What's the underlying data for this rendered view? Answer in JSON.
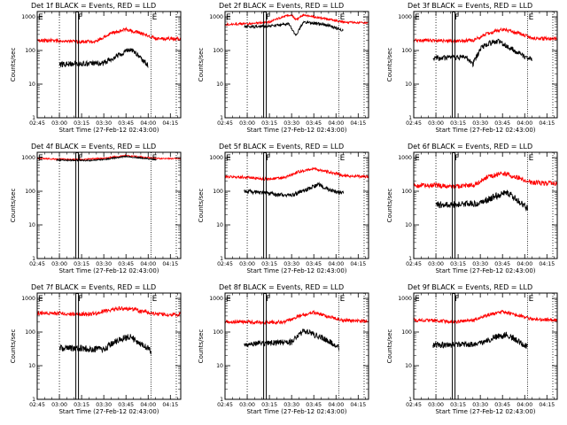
{
  "colors": {
    "events": "#000000",
    "lld": "#ff0000",
    "axis": "#000000",
    "background": "#ffffff"
  },
  "chart_data": [
    {
      "type": "line",
      "title": "Det 1f BLACK = Events, RED = LLD",
      "xlabel": "Start Time (27-Feb-12 02:43:00)",
      "ylabel": "Counts/sec",
      "y_scale": "log",
      "ylim": [
        1,
        1000
      ],
      "yticks": [
        "1",
        "10",
        "100",
        "1000"
      ],
      "xlim": [
        "02:45",
        "04:22"
      ],
      "xticks": [
        "02:45",
        "03:00",
        "03:15",
        "03:30",
        "03:45",
        "04:00",
        "04:15"
      ],
      "markers": [
        {
          "label": "E",
          "time": "02:45",
          "style": "solid"
        },
        {
          "label": "",
          "time": "03:00",
          "style": "dotted"
        },
        {
          "label": "F",
          "time": "03:12",
          "style": "double"
        },
        {
          "label": "E",
          "time": "04:02",
          "style": "solid"
        },
        {
          "label": "",
          "time": "04:19",
          "style": "dotted"
        }
      ],
      "series": [
        {
          "color": "#ff0000",
          "x": [
            "02:45",
            "03:00",
            "03:12",
            "03:25",
            "03:35",
            "03:45",
            "03:55",
            "04:05",
            "04:22"
          ],
          "values": [
            200,
            195,
            180,
            190,
            330,
            420,
            330,
            230,
            220
          ],
          "noise": 0.05
        },
        {
          "color": "#000000",
          "x": [
            "03:00",
            "03:10",
            "03:20",
            "03:30",
            "03:40",
            "03:48",
            "03:55",
            "04:00"
          ],
          "values": [
            38,
            40,
            40,
            42,
            75,
            110,
            60,
            36
          ],
          "noise": 0.08
        }
      ]
    },
    {
      "type": "line",
      "title": "Det 2f BLACK = Events, RED = LLD",
      "xlabel": "Start Time (27-Feb-12 02:43:00)",
      "ylabel": "Counts/sec",
      "y_scale": "log",
      "ylim": [
        1,
        1000
      ],
      "yticks": [
        "1",
        "10",
        "100",
        "1000"
      ],
      "xlim": [
        "02:45",
        "04:22"
      ],
      "xticks": [
        "02:45",
        "03:00",
        "03:15",
        "03:30",
        "03:45",
        "04:00",
        "04:15"
      ],
      "markers": [
        {
          "label": "E",
          "time": "02:45",
          "style": "solid"
        },
        {
          "label": "",
          "time": "03:00",
          "style": "dotted"
        },
        {
          "label": "F",
          "time": "03:12",
          "style": "double"
        },
        {
          "label": "E",
          "time": "04:02",
          "style": "solid"
        },
        {
          "label": "",
          "time": "04:19",
          "style": "dotted"
        }
      ],
      "series": [
        {
          "color": "#ff0000",
          "x": [
            "02:45",
            "03:00",
            "03:15",
            "03:25",
            "03:30",
            "03:33",
            "03:38",
            "03:45",
            "03:55",
            "04:05",
            "04:22"
          ],
          "values": [
            600,
            620,
            700,
            1050,
            1150,
            800,
            1150,
            1000,
            850,
            700,
            650
          ],
          "noise": 0.03
        },
        {
          "color": "#000000",
          "x": [
            "02:58",
            "03:10",
            "03:20",
            "03:28",
            "03:33",
            "03:38",
            "03:45",
            "03:55",
            "04:00",
            "04:05"
          ],
          "values": [
            500,
            520,
            560,
            620,
            280,
            700,
            650,
            560,
            460,
            400
          ],
          "noise": 0.04
        }
      ]
    },
    {
      "type": "line",
      "title": "Det 3f BLACK = Events, RED = LLD",
      "xlabel": "Start Time (27-Feb-12 02:43:00)",
      "ylabel": "Counts/sec",
      "y_scale": "log",
      "ylim": [
        1,
        1000
      ],
      "yticks": [
        "1",
        "10",
        "100",
        "1000"
      ],
      "xlim": [
        "02:45",
        "04:22"
      ],
      "xticks": [
        "02:45",
        "03:00",
        "03:15",
        "03:30",
        "03:45",
        "04:00",
        "04:15"
      ],
      "markers": [
        {
          "label": "E",
          "time": "02:45",
          "style": "solid"
        },
        {
          "label": "",
          "time": "03:00",
          "style": "dotted"
        },
        {
          "label": "F",
          "time": "03:12",
          "style": "double"
        },
        {
          "label": "E",
          "time": "04:02",
          "style": "solid"
        },
        {
          "label": "",
          "time": "04:19",
          "style": "dotted"
        }
      ],
      "series": [
        {
          "color": "#ff0000",
          "x": [
            "02:45",
            "03:00",
            "03:12",
            "03:25",
            "03:35",
            "03:45",
            "03:55",
            "04:05",
            "04:22"
          ],
          "values": [
            200,
            200,
            190,
            200,
            320,
            420,
            340,
            230,
            220
          ],
          "noise": 0.05
        },
        {
          "color": "#000000",
          "x": [
            "02:58",
            "03:10",
            "03:20",
            "03:25",
            "03:30",
            "03:35",
            "03:42",
            "03:50",
            "04:00",
            "04:05"
          ],
          "values": [
            60,
            60,
            65,
            40,
            110,
            160,
            190,
            120,
            65,
            55
          ],
          "noise": 0.08
        }
      ]
    },
    {
      "type": "line",
      "title": "Det 4f BLACK = Events, RED = LLD",
      "xlabel": "Start Time (27-Feb-12 02:43:00)",
      "ylabel": "Counts/sec",
      "y_scale": "log",
      "ylim": [
        1,
        1000
      ],
      "yticks": [
        "1",
        "10",
        "100",
        "1000"
      ],
      "xlim": [
        "02:45",
        "04:22"
      ],
      "xticks": [
        "02:45",
        "03:00",
        "03:15",
        "03:30",
        "03:45",
        "04:00",
        "04:15"
      ],
      "markers": [
        {
          "label": "E",
          "time": "02:45",
          "style": "solid"
        },
        {
          "label": "",
          "time": "03:00",
          "style": "dotted"
        },
        {
          "label": "F",
          "time": "03:12",
          "style": "double"
        },
        {
          "label": "E",
          "time": "04:02",
          "style": "solid"
        },
        {
          "label": "",
          "time": "04:19",
          "style": "dotted"
        }
      ],
      "series": [
        {
          "color": "#ff0000",
          "x": [
            "02:45",
            "03:00",
            "03:15",
            "03:30",
            "03:45",
            "03:55",
            "04:05",
            "04:22"
          ],
          "values": [
            950,
            900,
            880,
            950,
            1150,
            1050,
            950,
            920
          ],
          "noise": 0.02
        },
        {
          "color": "#000000",
          "x": [
            "02:58",
            "03:10",
            "03:20",
            "03:30",
            "03:45",
            "03:55",
            "04:05"
          ],
          "values": [
            850,
            830,
            820,
            880,
            1080,
            980,
            880
          ],
          "noise": 0.02
        }
      ]
    },
    {
      "type": "line",
      "title": "Det 5f BLACK = Events, RED = LLD",
      "xlabel": "Start Time (27-Feb-12 02:43:00)",
      "ylabel": "Counts/sec",
      "y_scale": "log",
      "ylim": [
        1,
        1000
      ],
      "yticks": [
        "1",
        "10",
        "100",
        "1000"
      ],
      "xlim": [
        "02:45",
        "04:22"
      ],
      "xticks": [
        "02:45",
        "03:00",
        "03:15",
        "03:30",
        "03:45",
        "04:00",
        "04:15"
      ],
      "markers": [
        {
          "label": "E",
          "time": "02:45",
          "style": "solid"
        },
        {
          "label": "",
          "time": "03:00",
          "style": "dotted"
        },
        {
          "label": "F",
          "time": "03:12",
          "style": "double"
        },
        {
          "label": "E",
          "time": "04:02",
          "style": "solid"
        },
        {
          "label": "",
          "time": "04:19",
          "style": "dotted"
        }
      ],
      "series": [
        {
          "color": "#ff0000",
          "x": [
            "02:45",
            "03:00",
            "03:12",
            "03:25",
            "03:35",
            "03:45",
            "03:55",
            "04:05",
            "04:22"
          ],
          "values": [
            270,
            260,
            230,
            250,
            380,
            470,
            380,
            290,
            270
          ],
          "noise": 0.04
        },
        {
          "color": "#000000",
          "x": [
            "02:58",
            "03:10",
            "03:20",
            "03:30",
            "03:40",
            "03:48",
            "03:55",
            "04:05"
          ],
          "values": [
            100,
            90,
            80,
            75,
            110,
            160,
            110,
            85
          ],
          "noise": 0.06
        }
      ]
    },
    {
      "type": "line",
      "title": "Det 6f BLACK = Events, RED = LLD",
      "xlabel": "Start Time (27-Feb-12 02:43:00)",
      "ylabel": "Counts/sec",
      "y_scale": "log",
      "ylim": [
        1,
        1000
      ],
      "yticks": [
        "1",
        "10",
        "100",
        "1000"
      ],
      "xlim": [
        "02:45",
        "04:22"
      ],
      "xticks": [
        "02:45",
        "03:00",
        "03:15",
        "03:30",
        "03:45",
        "04:00",
        "04:15"
      ],
      "markers": [
        {
          "label": "E",
          "time": "02:45",
          "style": "solid"
        },
        {
          "label": "",
          "time": "03:00",
          "style": "dotted"
        },
        {
          "label": "F",
          "time": "03:12",
          "style": "double"
        },
        {
          "label": "E",
          "time": "04:02",
          "style": "solid"
        },
        {
          "label": "",
          "time": "04:19",
          "style": "dotted"
        }
      ],
      "series": [
        {
          "color": "#ff0000",
          "x": [
            "02:45",
            "03:00",
            "03:12",
            "03:25",
            "03:35",
            "03:45",
            "03:55",
            "04:05",
            "04:22"
          ],
          "values": [
            150,
            150,
            140,
            150,
            270,
            340,
            260,
            180,
            170
          ],
          "noise": 0.07
        },
        {
          "color": "#000000",
          "x": [
            "03:00",
            "03:10",
            "03:20",
            "03:30",
            "03:40",
            "03:48",
            "03:55",
            "04:02"
          ],
          "values": [
            40,
            40,
            42,
            45,
            70,
            95,
            55,
            30
          ],
          "noise": 0.1
        }
      ]
    },
    {
      "type": "line",
      "title": "Det 7f BLACK = Events, RED = LLD",
      "xlabel": "Start Time (27-Feb-12 02:43:00)",
      "ylabel": "Counts/sec",
      "y_scale": "log",
      "ylim": [
        1,
        1000
      ],
      "yticks": [
        "1",
        "10",
        "100",
        "1000"
      ],
      "xlim": [
        "02:45",
        "04:22"
      ],
      "xticks": [
        "02:45",
        "03:00",
        "03:15",
        "03:30",
        "03:45",
        "04:00",
        "04:15"
      ],
      "markers": [
        {
          "label": "E",
          "time": "02:45",
          "style": "solid"
        },
        {
          "label": "",
          "time": "03:00",
          "style": "dotted"
        },
        {
          "label": "F",
          "time": "03:12",
          "style": "double"
        },
        {
          "label": "E",
          "time": "04:02",
          "style": "solid"
        },
        {
          "label": "",
          "time": "04:19",
          "style": "dotted"
        }
      ],
      "series": [
        {
          "color": "#ff0000",
          "x": [
            "02:45",
            "03:00",
            "03:12",
            "03:25",
            "03:35",
            "03:45",
            "03:55",
            "04:05",
            "04:22"
          ],
          "values": [
            370,
            360,
            330,
            360,
            470,
            520,
            420,
            340,
            330
          ],
          "noise": 0.06
        },
        {
          "color": "#000000",
          "x": [
            "03:00",
            "03:10",
            "03:20",
            "03:30",
            "03:40",
            "03:48",
            "03:55",
            "04:02"
          ],
          "values": [
            35,
            33,
            32,
            30,
            60,
            75,
            45,
            28
          ],
          "noise": 0.1
        }
      ]
    },
    {
      "type": "line",
      "title": "Det 8f BLACK = Events, RED = LLD",
      "xlabel": "Start Time (27-Feb-12 02:43:00)",
      "ylabel": "Counts/sec",
      "y_scale": "log",
      "ylim": [
        1,
        1000
      ],
      "yticks": [
        "1",
        "10",
        "100",
        "1000"
      ],
      "xlim": [
        "02:45",
        "04:22"
      ],
      "xticks": [
        "02:45",
        "03:00",
        "03:15",
        "03:30",
        "03:45",
        "04:00",
        "04:15"
      ],
      "markers": [
        {
          "label": "E",
          "time": "02:45",
          "style": "solid"
        },
        {
          "label": "",
          "time": "03:00",
          "style": "dotted"
        },
        {
          "label": "F",
          "time": "03:12",
          "style": "double"
        },
        {
          "label": "E",
          "time": "04:02",
          "style": "solid"
        },
        {
          "label": "",
          "time": "04:19",
          "style": "dotted"
        }
      ],
      "series": [
        {
          "color": "#ff0000",
          "x": [
            "02:45",
            "03:00",
            "03:12",
            "03:25",
            "03:35",
            "03:45",
            "03:55",
            "04:05",
            "04:22"
          ],
          "values": [
            200,
            200,
            190,
            200,
            300,
            380,
            290,
            220,
            210
          ],
          "noise": 0.05
        },
        {
          "color": "#000000",
          "x": [
            "02:58",
            "03:10",
            "03:20",
            "03:30",
            "03:38",
            "03:45",
            "03:55",
            "04:02"
          ],
          "values": [
            45,
            45,
            48,
            50,
            110,
            85,
            55,
            35
          ],
          "noise": 0.09
        }
      ]
    },
    {
      "type": "line",
      "title": "Det 9f BLACK = Events, RED = LLD",
      "xlabel": "Start Time (27-Feb-12 02:43:00)",
      "ylabel": "Counts/sec",
      "y_scale": "log",
      "ylim": [
        1,
        1000
      ],
      "yticks": [
        "1",
        "10",
        "100",
        "1000"
      ],
      "xlim": [
        "02:45",
        "04:22"
      ],
      "xticks": [
        "02:45",
        "03:00",
        "03:15",
        "03:30",
        "03:45",
        "04:00",
        "04:15"
      ],
      "markers": [
        {
          "label": "E",
          "time": "02:45",
          "style": "solid"
        },
        {
          "label": "",
          "time": "03:00",
          "style": "dotted"
        },
        {
          "label": "F",
          "time": "03:12",
          "style": "double"
        },
        {
          "label": "E",
          "time": "04:02",
          "style": "solid"
        },
        {
          "label": "",
          "time": "04:19",
          "style": "dotted"
        }
      ],
      "series": [
        {
          "color": "#ff0000",
          "x": [
            "02:45",
            "03:00",
            "03:12",
            "03:25",
            "03:35",
            "03:45",
            "03:55",
            "04:05",
            "04:22"
          ],
          "values": [
            230,
            220,
            200,
            220,
            320,
            400,
            320,
            240,
            230
          ],
          "noise": 0.05
        },
        {
          "color": "#000000",
          "x": [
            "02:58",
            "03:10",
            "03:20",
            "03:30",
            "03:40",
            "03:48",
            "03:55",
            "04:02"
          ],
          "values": [
            40,
            42,
            42,
            45,
            70,
            85,
            55,
            35
          ],
          "noise": 0.09
        }
      ]
    }
  ]
}
